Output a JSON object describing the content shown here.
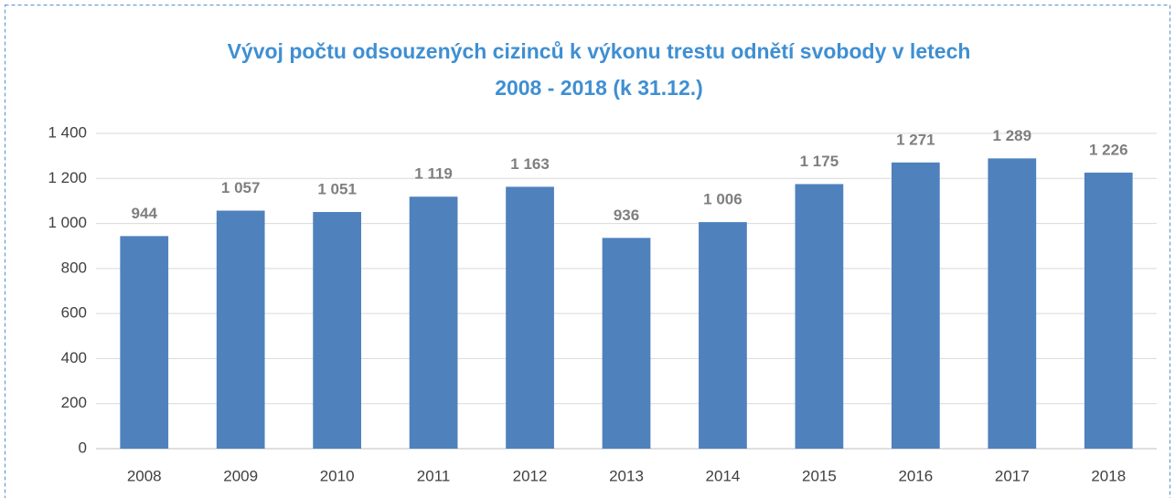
{
  "chart_data": {
    "type": "bar",
    "title": [
      "Vývoj počtu odsouzených cizinců k výkonu trestu odnětí svobody v letech",
      "2008 - 2018 (k 31.12.)"
    ],
    "categories": [
      "2008",
      "2009",
      "2010",
      "2011",
      "2012",
      "2013",
      "2014",
      "2015",
      "2016",
      "2017",
      "2018"
    ],
    "values": [
      944,
      1057,
      1051,
      1119,
      1163,
      936,
      1006,
      1175,
      1271,
      1289,
      1226
    ],
    "value_labels": [
      "944",
      "1 057",
      "1 051",
      "1 119",
      "1 163",
      "936",
      "1 006",
      "1 175",
      "1 271",
      "1 289",
      "1 226"
    ],
    "color": "#4f81bd",
    "ylim": [
      0,
      1400
    ],
    "yticks": [
      0,
      200,
      400,
      600,
      800,
      {
        "value": 1000,
        "label": "1 000"
      },
      {
        "value": 1200,
        "label": "1 200"
      },
      {
        "value": 1400,
        "label": "1 400"
      }
    ],
    "grid": true
  }
}
